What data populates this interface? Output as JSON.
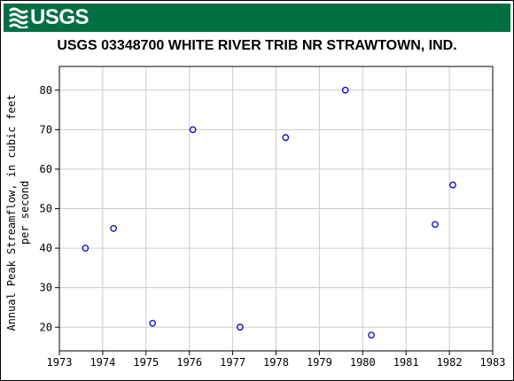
{
  "header": {
    "logo_text": "USGS",
    "color": "#006f41"
  },
  "chart_data": {
    "type": "scatter",
    "title": "USGS 03348700 WHITE RIVER TRIB NR STRAWTOWN, IND.",
    "ylabel_line1": "Annual Peak Streamflow, in cubic feet",
    "ylabel_line2": "per second",
    "xlabel": "",
    "xlim": [
      1973,
      1983
    ],
    "ylim": [
      14,
      86
    ],
    "xticks": [
      1973,
      1974,
      1975,
      1976,
      1977,
      1978,
      1979,
      1980,
      1981,
      1982,
      1983
    ],
    "yticks": [
      20,
      30,
      40,
      50,
      60,
      70,
      80
    ],
    "grid": true,
    "marker_color": "#0000cc",
    "points": [
      {
        "x": 1973.6,
        "y": 40
      },
      {
        "x": 1974.25,
        "y": 45
      },
      {
        "x": 1975.15,
        "y": 21
      },
      {
        "x": 1976.08,
        "y": 70
      },
      {
        "x": 1977.17,
        "y": 20
      },
      {
        "x": 1978.22,
        "y": 68
      },
      {
        "x": 1979.6,
        "y": 80
      },
      {
        "x": 1980.2,
        "y": 18
      },
      {
        "x": 1981.67,
        "y": 46
      },
      {
        "x": 1982.08,
        "y": 56
      }
    ]
  }
}
